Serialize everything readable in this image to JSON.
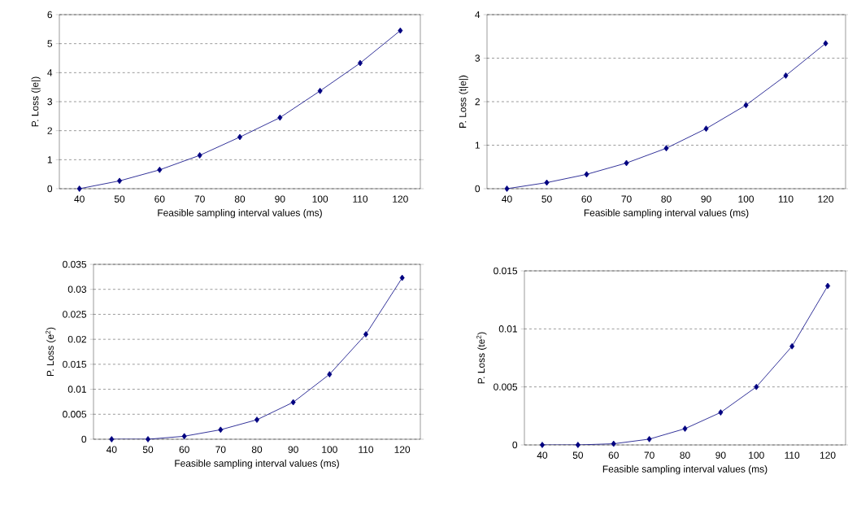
{
  "chart_data": [
    {
      "type": "line",
      "xlabel": "Feasible sampling interval values (ms)",
      "ylabel": "P. Loss (|e|)",
      "categories": [
        "40",
        "50",
        "60",
        "70",
        "80",
        "90",
        "100",
        "110",
        "120"
      ],
      "color": "#000080",
      "marker": "diamond",
      "grid": "y",
      "values": [
        0,
        0.27,
        0.65,
        1.15,
        1.78,
        2.45,
        3.37,
        4.33,
        5.45
      ],
      "ylim": [
        0,
        6
      ],
      "yticks": [
        0,
        1,
        2,
        3,
        4,
        5,
        6
      ]
    },
    {
      "type": "line",
      "xlabel": "Feasible sampling interval values (ms)",
      "ylabel": "P. Loss (t|e|)",
      "categories": [
        "40",
        "50",
        "60",
        "70",
        "80",
        "90",
        "100",
        "110",
        "120"
      ],
      "color": "#000080",
      "marker": "diamond",
      "grid": "y",
      "values": [
        0,
        0.14,
        0.33,
        0.59,
        0.93,
        1.38,
        1.92,
        2.6,
        3.34
      ],
      "ylim": [
        0,
        4
      ],
      "yticks": [
        0,
        1,
        2,
        3,
        4
      ]
    },
    {
      "type": "line",
      "xlabel": "Feasible sampling interval values (ms)",
      "ylabel": "P. Loss (e$^{2}$)",
      "categories": [
        "40",
        "50",
        "60",
        "70",
        "80",
        "90",
        "100",
        "110",
        "120"
      ],
      "color": "#000080",
      "marker": "diamond",
      "grid": "y",
      "values": [
        0,
        0,
        0.0006,
        0.0019,
        0.0039,
        0.0074,
        0.013,
        0.021,
        0.0323
      ],
      "ylim": [
        0,
        0.035
      ],
      "yticks": [
        0,
        0.005,
        0.01,
        0.015,
        0.02,
        0.025,
        0.03,
        0.035
      ]
    },
    {
      "type": "line",
      "xlabel": "Feasible sampling interval values (ms)",
      "ylabel": "P. Loss (te$^{2}$)",
      "categories": [
        "40",
        "50",
        "60",
        "70",
        "80",
        "90",
        "100",
        "110",
        "120"
      ],
      "color": "#000080",
      "marker": "diamond",
      "grid": "y",
      "values": [
        0,
        0,
        0.0001,
        0.0005,
        0.0014,
        0.0028,
        0.005,
        0.0085,
        0.0137
      ],
      "ylim": [
        0,
        0.015
      ],
      "yticks": [
        0,
        0.005,
        0.01,
        0.015
      ]
    }
  ]
}
